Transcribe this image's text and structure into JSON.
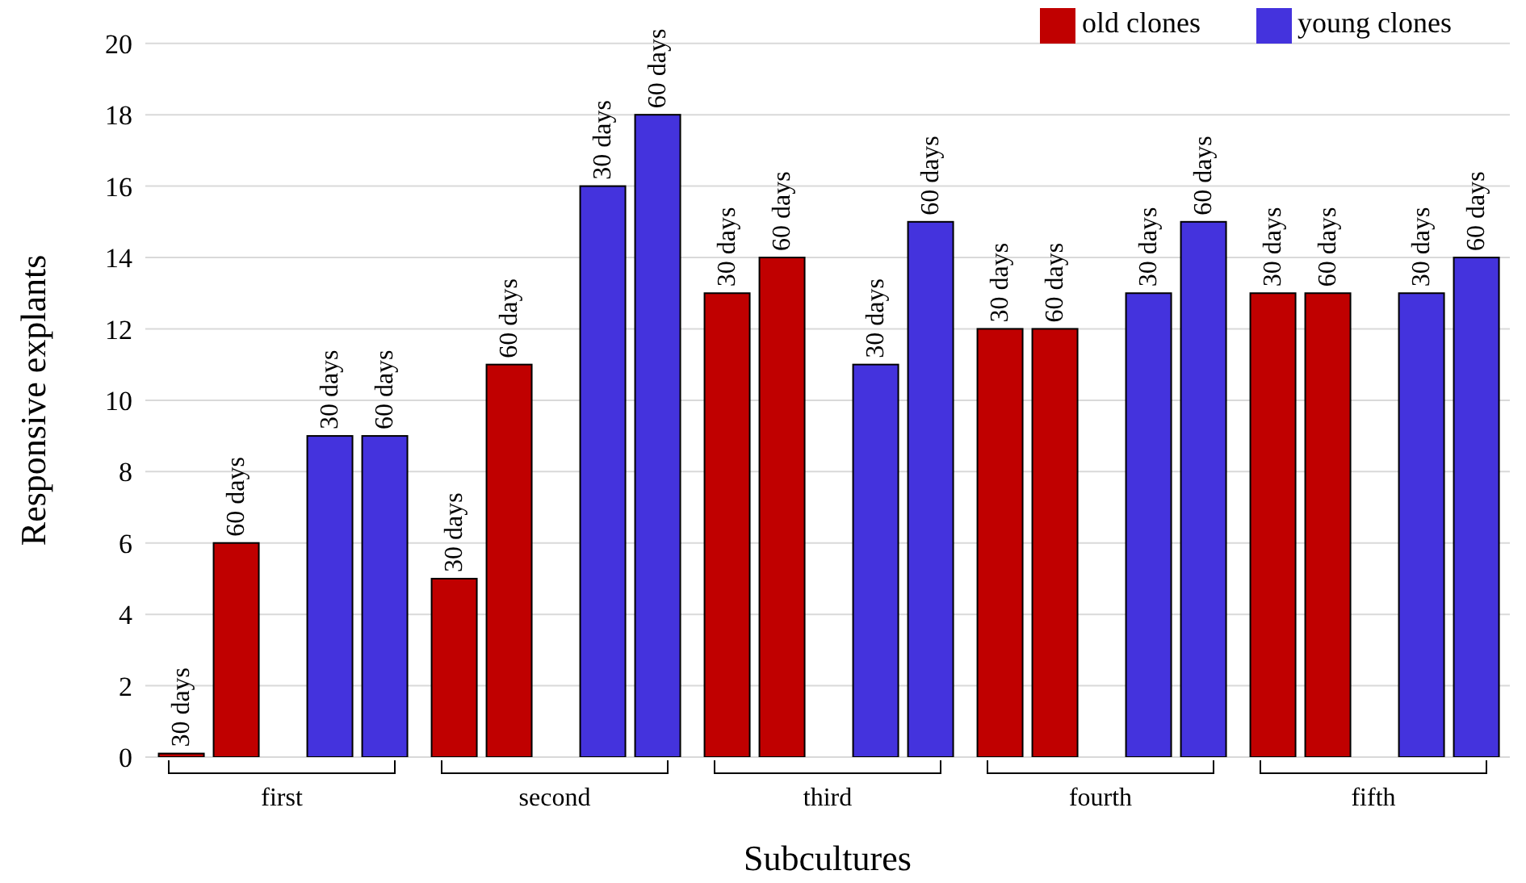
{
  "chart_data": {
    "type": "bar",
    "xlabel": "Subcultures",
    "ylabel": "Responsive explants",
    "categories": [
      "first",
      "second",
      "third",
      "fourth",
      "fifth"
    ],
    "series": [
      {
        "name": "old clones",
        "color": "#c00000",
        "values": [
          0.1,
          5,
          13,
          12,
          13
        ]
      },
      {
        "color": "#c00000",
        "values": [
          6,
          11,
          14,
          12,
          13
        ]
      },
      {
        "name": "young clones",
        "color": "#4433dd",
        "values": [
          9,
          16,
          11,
          13,
          13
        ]
      },
      {
        "color": "#4433dd",
        "values": [
          9,
          18,
          15,
          15,
          14
        ]
      }
    ],
    "annotations": [
      "30 days",
      "60 days",
      "30 days",
      "60 days",
      "30 days",
      "60 days",
      "30 days",
      "60 days",
      "30 days",
      "60 days",
      "30 days",
      "60 days",
      "30 days",
      "60 days",
      "30 days",
      "60 days",
      "30 days",
      "60 days",
      "30 days",
      "60 days"
    ],
    "ylim": [
      0,
      20
    ],
    "yticks": [
      0,
      2,
      4,
      6,
      8,
      10,
      12,
      14,
      16,
      18,
      20
    ],
    "grid": "y",
    "legend": "top right"
  }
}
